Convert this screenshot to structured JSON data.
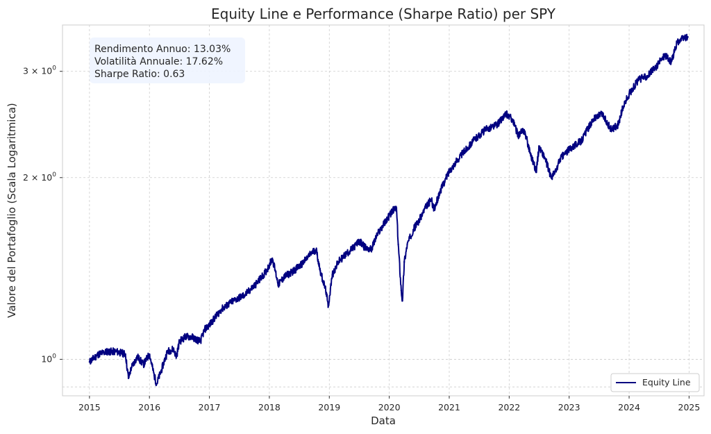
{
  "chart_data": {
    "type": "line",
    "title": "Equity Line e Performance (Sharpe Ratio) per SPY",
    "xlabel": "Data",
    "ylabel": "Valore del Portafoglio (Scala Logaritmica)",
    "yscale": "log",
    "xlim": [
      2014.55,
      2025.25
    ],
    "ylim": [
      0.87,
      3.58
    ],
    "x_ticks": [
      "2015",
      "2016",
      "2017",
      "2018",
      "2019",
      "2020",
      "2021",
      "2022",
      "2023",
      "2024",
      "2025"
    ],
    "y_ticks": [
      {
        "value": 1.0,
        "label_base": "10",
        "label_exp": "0"
      },
      {
        "value": 2.0,
        "label_base": "2 × 10",
        "label_exp": "0"
      },
      {
        "value": 3.0,
        "label_base": "3 × 10",
        "label_exp": "0"
      }
    ],
    "y_minor_gridlines": [
      0.9
    ],
    "grid": true,
    "stats": {
      "annual_return": "Rendimento Annuo: 13.03%",
      "annual_volatility": "Volatilità Annuale: 17.62%",
      "sharpe": "Sharpe Ratio: 0.63"
    },
    "legend": {
      "position": "lower-right",
      "entries": [
        "Equity Line"
      ]
    },
    "series": [
      {
        "name": "Equity Line",
        "color": "#000080",
        "x": [
          2015.0,
          2015.15,
          2015.3,
          2015.45,
          2015.6,
          2015.65,
          2015.7,
          2015.8,
          2015.9,
          2016.0,
          2016.08,
          2016.12,
          2016.2,
          2016.3,
          2016.4,
          2016.45,
          2016.5,
          2016.6,
          2016.7,
          2016.85,
          2016.92,
          2017.0,
          2017.2,
          2017.4,
          2017.6,
          2017.8,
          2017.95,
          2018.05,
          2018.1,
          2018.15,
          2018.25,
          2018.4,
          2018.55,
          2018.7,
          2018.78,
          2018.85,
          2018.95,
          2018.98,
          2019.05,
          2019.15,
          2019.3,
          2019.4,
          2019.5,
          2019.6,
          2019.7,
          2019.8,
          2019.95,
          2020.05,
          2020.12,
          2020.15,
          2020.2,
          2020.22,
          2020.25,
          2020.3,
          2020.4,
          2020.5,
          2020.6,
          2020.7,
          2020.75,
          2020.85,
          2021.0,
          2021.2,
          2021.4,
          2021.6,
          2021.8,
          2021.95,
          2022.05,
          2022.15,
          2022.25,
          2022.35,
          2022.45,
          2022.5,
          2022.6,
          2022.7,
          2022.78,
          2022.85,
          2022.95,
          2023.05,
          2023.2,
          2023.4,
          2023.55,
          2023.7,
          2023.82,
          2023.9,
          2024.0,
          2024.15,
          2024.3,
          2024.45,
          2024.6,
          2024.7,
          2024.8,
          2024.9,
          2024.98
        ],
        "values": [
          0.99,
          1.02,
          1.03,
          1.03,
          1.02,
          0.93,
          0.97,
          1.01,
          0.98,
          1.02,
          0.94,
          0.91,
          0.96,
          1.03,
          1.04,
          1.01,
          1.07,
          1.09,
          1.09,
          1.07,
          1.12,
          1.14,
          1.21,
          1.25,
          1.28,
          1.34,
          1.4,
          1.47,
          1.4,
          1.33,
          1.37,
          1.4,
          1.44,
          1.5,
          1.52,
          1.4,
          1.29,
          1.22,
          1.38,
          1.45,
          1.5,
          1.53,
          1.57,
          1.53,
          1.52,
          1.61,
          1.7,
          1.76,
          1.78,
          1.55,
          1.3,
          1.25,
          1.45,
          1.55,
          1.64,
          1.7,
          1.78,
          1.84,
          1.77,
          1.9,
          2.05,
          2.18,
          2.3,
          2.4,
          2.45,
          2.55,
          2.5,
          2.35,
          2.4,
          2.2,
          2.05,
          2.25,
          2.15,
          2.0,
          2.05,
          2.15,
          2.2,
          2.25,
          2.3,
          2.5,
          2.55,
          2.4,
          2.45,
          2.62,
          2.75,
          2.9,
          2.95,
          3.05,
          3.2,
          3.1,
          3.35,
          3.4,
          3.42
        ]
      }
    ]
  }
}
